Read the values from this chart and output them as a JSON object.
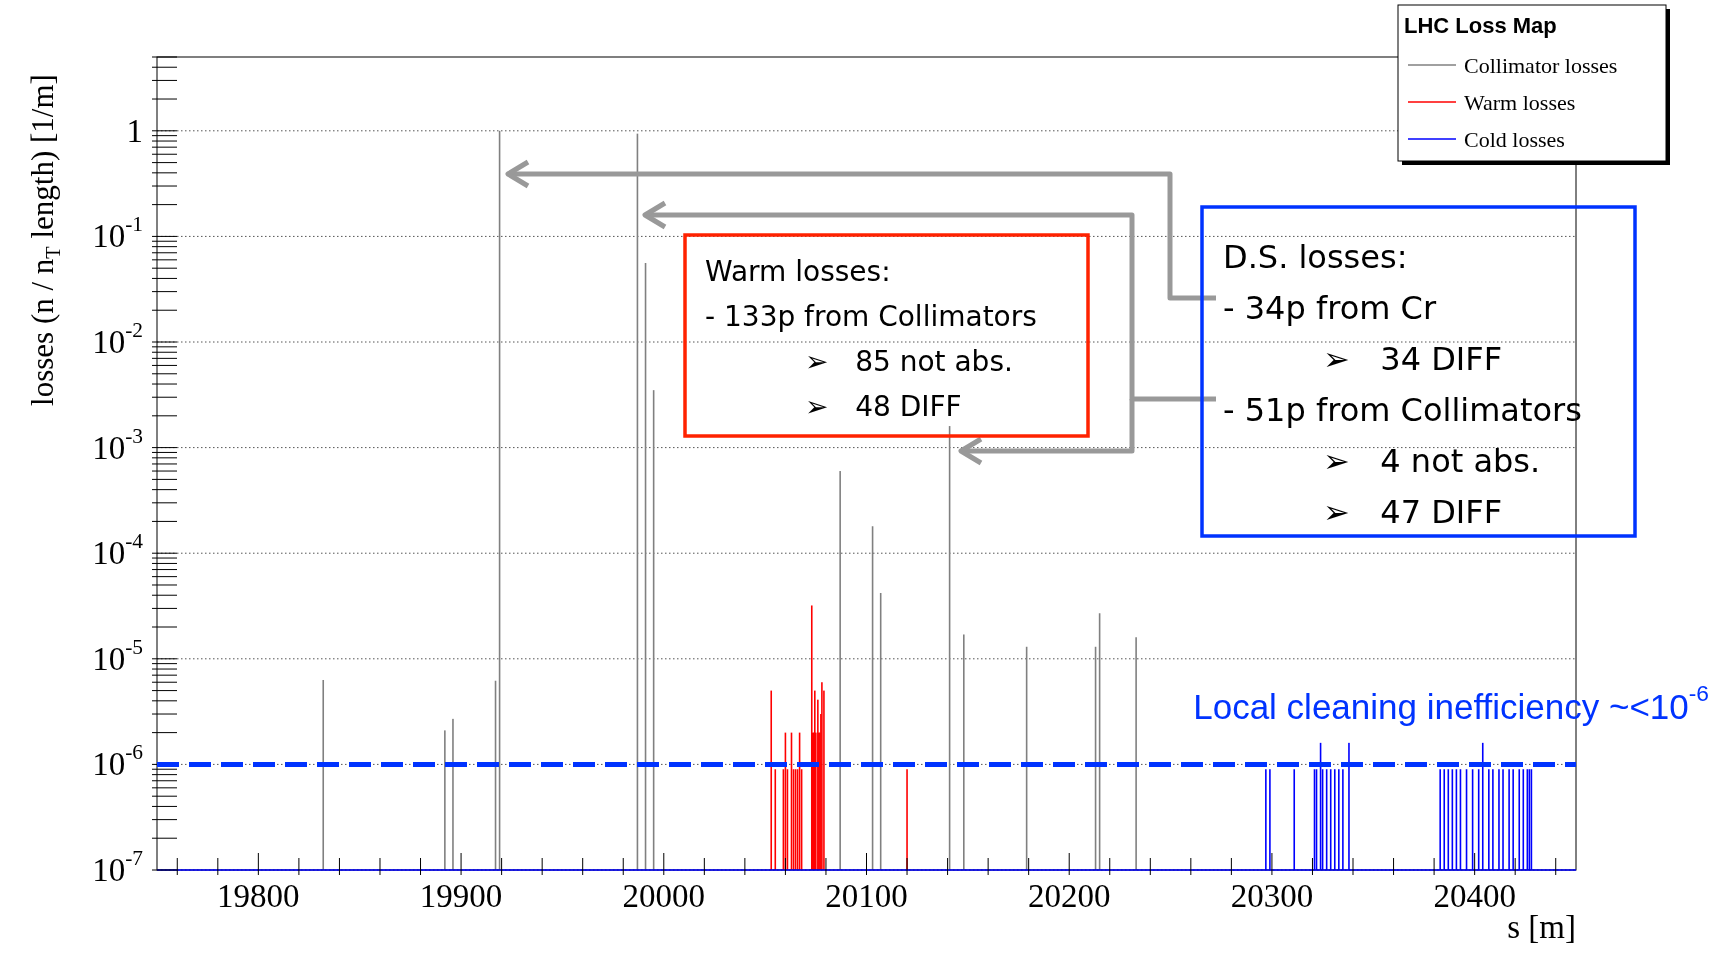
{
  "chart_data": {
    "type": "bar",
    "xlabel": "s [m]",
    "ylabel": "losses (n / n$_{T}$ length) [1/m]",
    "legend_title": "LHC Loss Map",
    "legend": "top right",
    "log": "y",
    "grid": "y",
    "xlim": [
      19750,
      20450
    ],
    "xticks": [
      {
        "value": 19760,
        "label": null
      },
      {
        "value": 19780,
        "label": null
      },
      19800,
      {
        "value": 19820,
        "label": null
      },
      {
        "value": 19840,
        "label": null
      },
      {
        "value": 19860,
        "label": null
      },
      {
        "value": 19880,
        "label": null
      },
      19900,
      {
        "value": 19920,
        "label": null
      },
      {
        "value": 19940,
        "label": null
      },
      {
        "value": 19960,
        "label": null
      },
      {
        "value": 19980,
        "label": null
      },
      20000,
      {
        "value": 20020,
        "label": null
      },
      {
        "value": 20040,
        "label": null
      },
      {
        "value": 20060,
        "label": null
      },
      {
        "value": 20080,
        "label": null
      },
      20100,
      {
        "value": 20120,
        "label": null
      },
      {
        "value": 20140,
        "label": null
      },
      {
        "value": 20160,
        "label": null
      },
      {
        "value": 20180,
        "label": null
      },
      20200,
      {
        "value": 20220,
        "label": null
      },
      {
        "value": 20240,
        "label": null
      },
      {
        "value": 20260,
        "label": null
      },
      {
        "value": 20280,
        "label": null
      },
      20300,
      {
        "value": 20320,
        "label": null
      },
      {
        "value": 20340,
        "label": null
      },
      {
        "value": 20360,
        "label": null
      },
      {
        "value": 20380,
        "label": null
      },
      20400,
      {
        "value": 20420,
        "label": null
      },
      {
        "value": 20440,
        "label": null
      }
    ],
    "ylim": [
      1e-07,
      5
    ],
    "yticks": [
      {
        "value": 1e-07,
        "label": "10$^{-7}$"
      },
      {
        "value": 2e-07,
        "label": null
      },
      {
        "value": 3e-07,
        "label": null
      },
      {
        "value": 4e-07,
        "label": null
      },
      {
        "value": 5e-07,
        "label": null
      },
      {
        "value": 6e-07,
        "label": null
      },
      {
        "value": 7e-07,
        "label": null
      },
      {
        "value": 8e-07,
        "label": null
      },
      {
        "value": 9e-07,
        "label": null
      },
      {
        "value": 1e-06,
        "label": "10$^{-6}$"
      },
      {
        "value": 2e-06,
        "label": null
      },
      {
        "value": 3e-06,
        "label": null
      },
      {
        "value": 4e-06,
        "label": null
      },
      {
        "value": 5e-06,
        "label": null
      },
      {
        "value": 6e-06,
        "label": null
      },
      {
        "value": 7e-06,
        "label": null
      },
      {
        "value": 8e-06,
        "label": null
      },
      {
        "value": 9e-06,
        "label": null
      },
      {
        "value": 1e-05,
        "label": "10$^{-5}$"
      },
      {
        "value": 2e-05,
        "label": null
      },
      {
        "value": 3e-05,
        "label": null
      },
      {
        "value": 4e-05,
        "label": null
      },
      {
        "value": 5e-05,
        "label": null
      },
      {
        "value": 6e-05,
        "label": null
      },
      {
        "value": 7e-05,
        "label": null
      },
      {
        "value": 8e-05,
        "label": null
      },
      {
        "value": 9e-05,
        "label": null
      },
      {
        "value": 0.0001,
        "label": "10$^{-4}$"
      },
      {
        "value": 0.0002,
        "label": null
      },
      {
        "value": 0.0003,
        "label": null
      },
      {
        "value": 0.0004,
        "label": null
      },
      {
        "value": 0.0005,
        "label": null
      },
      {
        "value": 0.0006,
        "label": null
      },
      {
        "value": 0.0007,
        "label": null
      },
      {
        "value": 0.0008,
        "label": null
      },
      {
        "value": 0.0009,
        "label": null
      },
      {
        "value": 0.001,
        "label": "10$^{-3}$"
      },
      {
        "value": 0.002,
        "label": null
      },
      {
        "value": 0.003,
        "label": null
      },
      {
        "value": 0.004,
        "label": null
      },
      {
        "value": 0.005,
        "label": null
      },
      {
        "value": 0.006,
        "label": null
      },
      {
        "value": 0.007,
        "label": null
      },
      {
        "value": 0.008,
        "label": null
      },
      {
        "value": 0.009,
        "label": null
      },
      {
        "value": 0.01,
        "label": "10$^{-2}$"
      },
      {
        "value": 0.02,
        "label": null
      },
      {
        "value": 0.03,
        "label": null
      },
      {
        "value": 0.04,
        "label": null
      },
      {
        "value": 0.05,
        "label": null
      },
      {
        "value": 0.06,
        "label": null
      },
      {
        "value": 0.07,
        "label": null
      },
      {
        "value": 0.08,
        "label": null
      },
      {
        "value": 0.09,
        "label": null
      },
      {
        "value": 0.1,
        "label": "10$^{-1}$"
      },
      {
        "value": 0.2,
        "label": null
      },
      {
        "value": 0.3,
        "label": null
      },
      {
        "value": 0.4,
        "label": null
      },
      {
        "value": 0.5,
        "label": null
      },
      {
        "value": 0.6,
        "label": null
      },
      {
        "value": 0.7,
        "label": null
      },
      {
        "value": 0.8,
        "label": null
      },
      {
        "value": 0.9,
        "label": null
      },
      1,
      {
        "value": 2,
        "label": null
      },
      {
        "value": 3,
        "label": null
      },
      {
        "value": 4,
        "label": null
      },
      {
        "value": 5,
        "label": null
      }
    ],
    "series": [
      {
        "name": "Collimator losses",
        "color": "#808080",
        "x": [
          19832,
          19892,
          19896,
          19917,
          19919,
          19987,
          19991,
          19995,
          20087,
          20103,
          20107,
          20141,
          20148,
          20179,
          20213,
          20215,
          20233
        ],
        "values": [
          6.3e-06,
          2.1e-06,
          2.7e-06,
          6.2e-06,
          1,
          0.94,
          0.056,
          0.0035,
          0.0006,
          0.00018,
          4.2e-05,
          0.0016,
          1.7e-05,
          1.3e-05,
          1.3e-05,
          2.7e-05,
          1.6e-05
        ]
      },
      {
        "name": "Warm losses",
        "color": "#ff0000",
        "x": [
          20053,
          20055,
          20059,
          20060,
          20061,
          20063,
          20064,
          20065,
          20066,
          20067,
          20068,
          20073,
          20073.5,
          20074,
          20074.5,
          20075,
          20076,
          20076.5,
          20077,
          20077.5,
          20078,
          20079,
          20120
        ],
        "values": [
          5e-06,
          9e-07,
          9e-07,
          2e-06,
          9e-07,
          2e-06,
          9e-07,
          9e-07,
          9e-07,
          2e-06,
          9e-07,
          3.2e-05,
          2e-06,
          2e-06,
          5e-06,
          2e-06,
          4.1e-06,
          2e-06,
          2e-06,
          3e-06,
          6e-06,
          5e-06,
          9e-07
        ]
      },
      {
        "name": "Cold losses",
        "color": "#0000ff",
        "x": [
          20297,
          20299,
          20311,
          20321,
          20322,
          20324,
          20325,
          20327,
          20329,
          20331,
          20333,
          20335,
          20338,
          20383,
          20385,
          20387,
          20389,
          20391,
          20393,
          20396,
          20399,
          20402,
          20404,
          20407,
          20409,
          20412,
          20414,
          20417,
          20419,
          20422,
          20424,
          20426,
          20427,
          20428
        ],
        "values": [
          9e-07,
          9e-07,
          9e-07,
          9e-07,
          9e-07,
          1.6e-06,
          9e-07,
          9e-07,
          9e-07,
          9e-07,
          9e-07,
          9e-07,
          1.6e-06,
          9e-07,
          9e-07,
          9e-07,
          9e-07,
          9e-07,
          9e-07,
          9e-07,
          9e-07,
          9e-07,
          1.6e-06,
          9e-07,
          9e-07,
          9e-07,
          9e-07,
          9e-07,
          9e-07,
          9e-07,
          9e-07,
          9e-07,
          9e-07,
          9e-07
        ]
      }
    ],
    "ref_lines": [
      {
        "axis": "y",
        "value": 1e-06,
        "label": "Local cleaning inefficiency ~<10$^{-6}$",
        "color": "#0033ff",
        "line_style": "dashed"
      }
    ],
    "annotations": [
      "Warm losses:\n- 133p from Collimators\n➢   85 not abs.\n➢   48 DIFF",
      "D.S. losses:\n- 34p from Cr\n➢   34 DIFF\n- 51p from Collimators\n➢   4 not abs.\n➢   47 DIFF"
    ]
  }
}
